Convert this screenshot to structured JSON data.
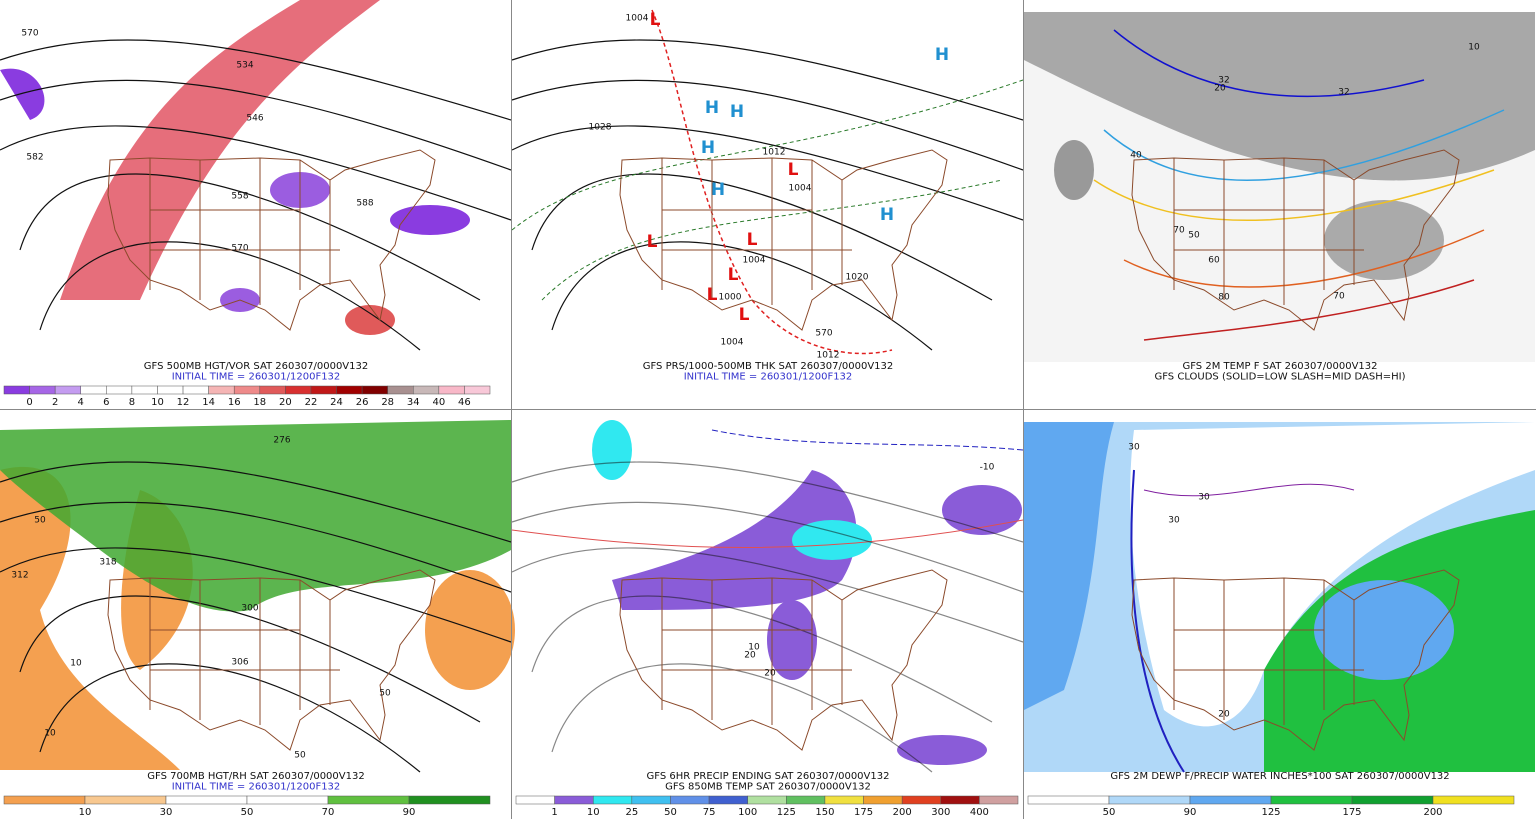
{
  "panels": [
    {
      "caption_lines": [
        "GFS 500MB HGT/VOR SAT 260307/0000V132",
        "INITIAL TIME = 260301/1200F132"
      ],
      "colorbar": {
        "labels": [
          "0",
          "2",
          "4",
          "6",
          "8",
          "10",
          "12",
          "14",
          "16",
          "18",
          "20",
          "22",
          "24",
          "26",
          "28",
          "34",
          "40",
          "46"
        ],
        "colors": [
          "#8a3ce0",
          "#a666e6",
          "#c49cf0",
          "#ffffff",
          "#ffffff",
          "#ffffff",
          "#ffffff",
          "#ffffff",
          "#f5b5b5",
          "#ee8a8a",
          "#e05a5a",
          "#d83030",
          "#c01818",
          "#a00000",
          "#800000",
          "#a89090",
          "#c8b8b8",
          "#f8b8c8",
          "#f8c8d8"
        ]
      },
      "map_labels": [
        "570",
        "534",
        "546",
        "582",
        "558",
        "570",
        "588"
      ]
    },
    {
      "caption_lines": [
        "GFS PRS/1000-500MB THK SAT 260307/0000V132",
        "INITIAL TIME = 260301/1200F132"
      ],
      "map_labels": [
        "H",
        "H",
        "H",
        "H",
        "H",
        "H",
        "L",
        "L",
        "L",
        "L",
        "L",
        "L",
        "L",
        "1004",
        "1012",
        "1028",
        "1004",
        "1004",
        "1000",
        "1020",
        "1012",
        "1004",
        "570"
      ]
    },
    {
      "caption_lines": [
        "GFS 2M TEMP F SAT 260307/0000V132",
        "GFS CLOUDS (SOLID=LOW SLASH=MID DASH=HI)"
      ],
      "map_labels": [
        "32",
        "32",
        "40",
        "50",
        "60",
        "70",
        "80",
        "70",
        "10",
        "20"
      ]
    },
    {
      "caption_lines": [
        "GFS 700MB HGT/RH SAT 260307/0000V132",
        "INITIAL TIME = 260301/1200F132"
      ],
      "colorbar": {
        "labels": [
          "10",
          "30",
          "50",
          "70",
          "90"
        ],
        "colors": [
          "#f4a050",
          "#f8c890",
          "#ffffff",
          "#ffffff",
          "#60c040",
          "#209020"
        ]
      },
      "map_labels": [
        "50",
        "312",
        "306",
        "300",
        "318",
        "10",
        "10",
        "50",
        "50",
        "276"
      ]
    },
    {
      "caption_lines": [
        "GFS 6HR PRECIP ENDING SAT 260307/0000V132",
        "GFS 850MB TEMP SAT 260307/0000V132"
      ],
      "colorbar": {
        "labels": [
          "1",
          "10",
          "25",
          "50",
          "75",
          "100",
          "125",
          "150",
          "175",
          "200",
          "300",
          "400"
        ],
        "colors": [
          "#ffffff",
          "#8a5cd8",
          "#30e8f0",
          "#40c0f0",
          "#6090e8",
          "#4060d0",
          "#b0e0a0",
          "#60c060",
          "#f0e040",
          "#f0a030",
          "#e04020",
          "#a01010",
          "#d0a0a0"
        ]
      },
      "map_labels": [
        "10",
        "20",
        "20",
        "-10"
      ]
    },
    {
      "caption_lines": [
        "GFS 2M DEWP F/PRECIP WATER INCHES*100 SAT 260307/0000V132"
      ],
      "colorbar": {
        "labels": [
          "50",
          "90",
          "125",
          "175",
          "200"
        ],
        "colors": [
          "#ffffff",
          "#b0d8f8",
          "#60a8f0",
          "#20c040",
          "#10a030",
          "#f0e020"
        ]
      },
      "map_labels": [
        "30",
        "30",
        "20",
        "30"
      ]
    }
  ]
}
